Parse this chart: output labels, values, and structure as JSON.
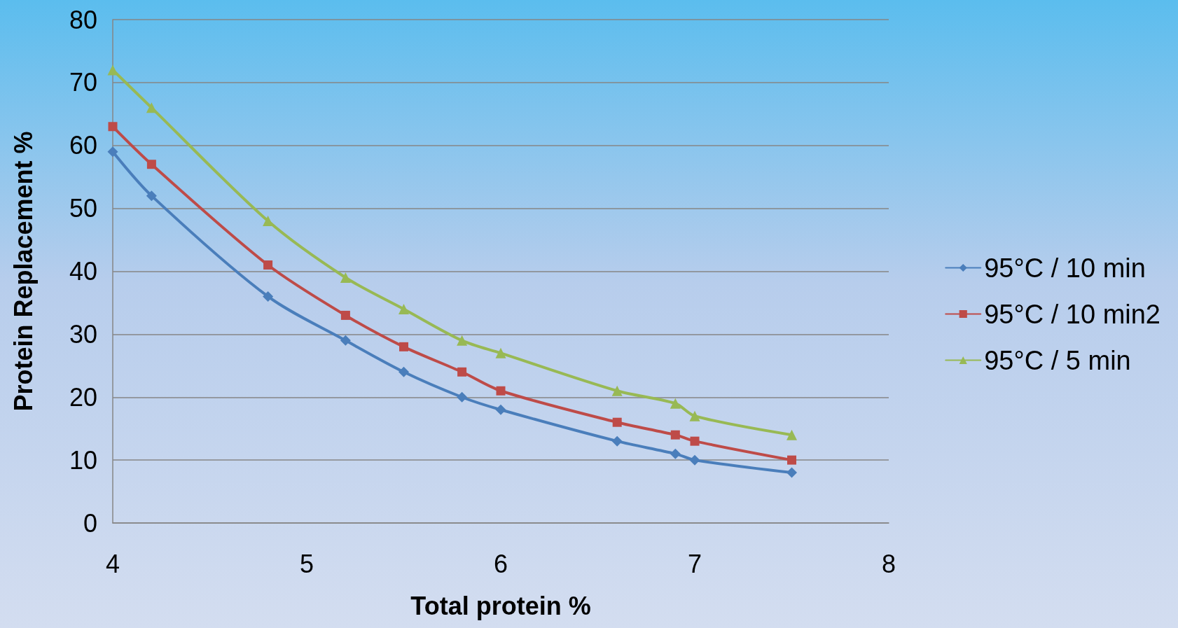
{
  "chart_data": {
    "type": "line",
    "xlabel": "Total protein %",
    "ylabel": "Protein Replacement %",
    "x": [
      4,
      4.2,
      4.8,
      5.2,
      5.5,
      5.8,
      6,
      6.6,
      6.9,
      7,
      7.5
    ],
    "series": [
      {
        "name": "95°C / 10 min",
        "color": "#4a7ebb",
        "marker": "diamond",
        "values": [
          59,
          52,
          36,
          29,
          24,
          20,
          18,
          13,
          11,
          10,
          8
        ]
      },
      {
        "name": "95°C / 10 min2",
        "color": "#be4b48",
        "marker": "square",
        "values": [
          63,
          57,
          41,
          33,
          28,
          24,
          21,
          16,
          14,
          13,
          10
        ]
      },
      {
        "name": "95°C / 5 min",
        "color": "#98b954",
        "marker": "triangle",
        "values": [
          72,
          66,
          48,
          39,
          34,
          29,
          27,
          21,
          19,
          17,
          14
        ]
      }
    ],
    "xlim": [
      4,
      8
    ],
    "xticks": [
      4,
      5,
      6,
      7,
      8
    ],
    "ylim": [
      0,
      80
    ],
    "yticks": [
      0,
      10,
      20,
      30,
      40,
      50,
      60,
      70,
      80
    ],
    "grid": "y",
    "legend": "right",
    "line_style": "solid"
  }
}
